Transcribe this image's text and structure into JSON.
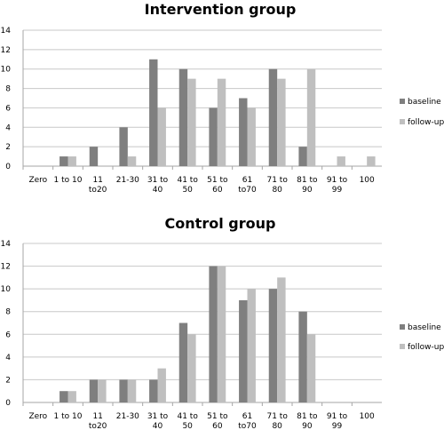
{
  "chart_data": [
    {
      "type": "bar",
      "title": "Intervention group",
      "categories": [
        "Zero",
        "1 to 10",
        "11\nto20",
        "21-30",
        "31 to\n40",
        "41 to\n50",
        "51 to\n60",
        "61\nto70",
        "71 to\n80",
        "81 to\n90",
        "91 to\n99",
        "100"
      ],
      "series": [
        {
          "name": "baseline",
          "color": "#7f7f7f",
          "values": [
            0,
            1,
            2,
            4,
            11,
            10,
            6,
            7,
            10,
            2,
            0,
            0
          ]
        },
        {
          "name": "follow-up",
          "color": "#bfbfbf",
          "values": [
            0,
            1,
            0,
            1,
            6,
            9,
            9,
            6,
            9,
            10,
            1,
            1
          ]
        }
      ],
      "ylim": [
        0,
        14
      ],
      "yticks": [
        0,
        2,
        4,
        6,
        8,
        10,
        12,
        14
      ],
      "grid": true,
      "legend": "right"
    },
    {
      "type": "bar",
      "title": "Control group",
      "categories": [
        "Zero",
        "1 to 10",
        "11\nto20",
        "21-30",
        "31 to\n40",
        "41 to\n50",
        "51 to\n60",
        "61\nto70",
        "71 to\n80",
        "81 to\n90",
        "91 to\n99",
        "100"
      ],
      "series": [
        {
          "name": "baseline",
          "color": "#7f7f7f",
          "values": [
            0,
            1,
            2,
            2,
            2,
            7,
            12,
            9,
            10,
            8,
            0,
            0
          ]
        },
        {
          "name": "follow-up",
          "color": "#bfbfbf",
          "values": [
            0,
            1,
            2,
            2,
            3,
            6,
            12,
            10,
            11,
            6,
            0,
            0
          ]
        }
      ],
      "ylim": [
        0,
        14
      ],
      "yticks": [
        0,
        2,
        4,
        6,
        8,
        10,
        12,
        14
      ],
      "grid": true,
      "legend": "right"
    }
  ]
}
